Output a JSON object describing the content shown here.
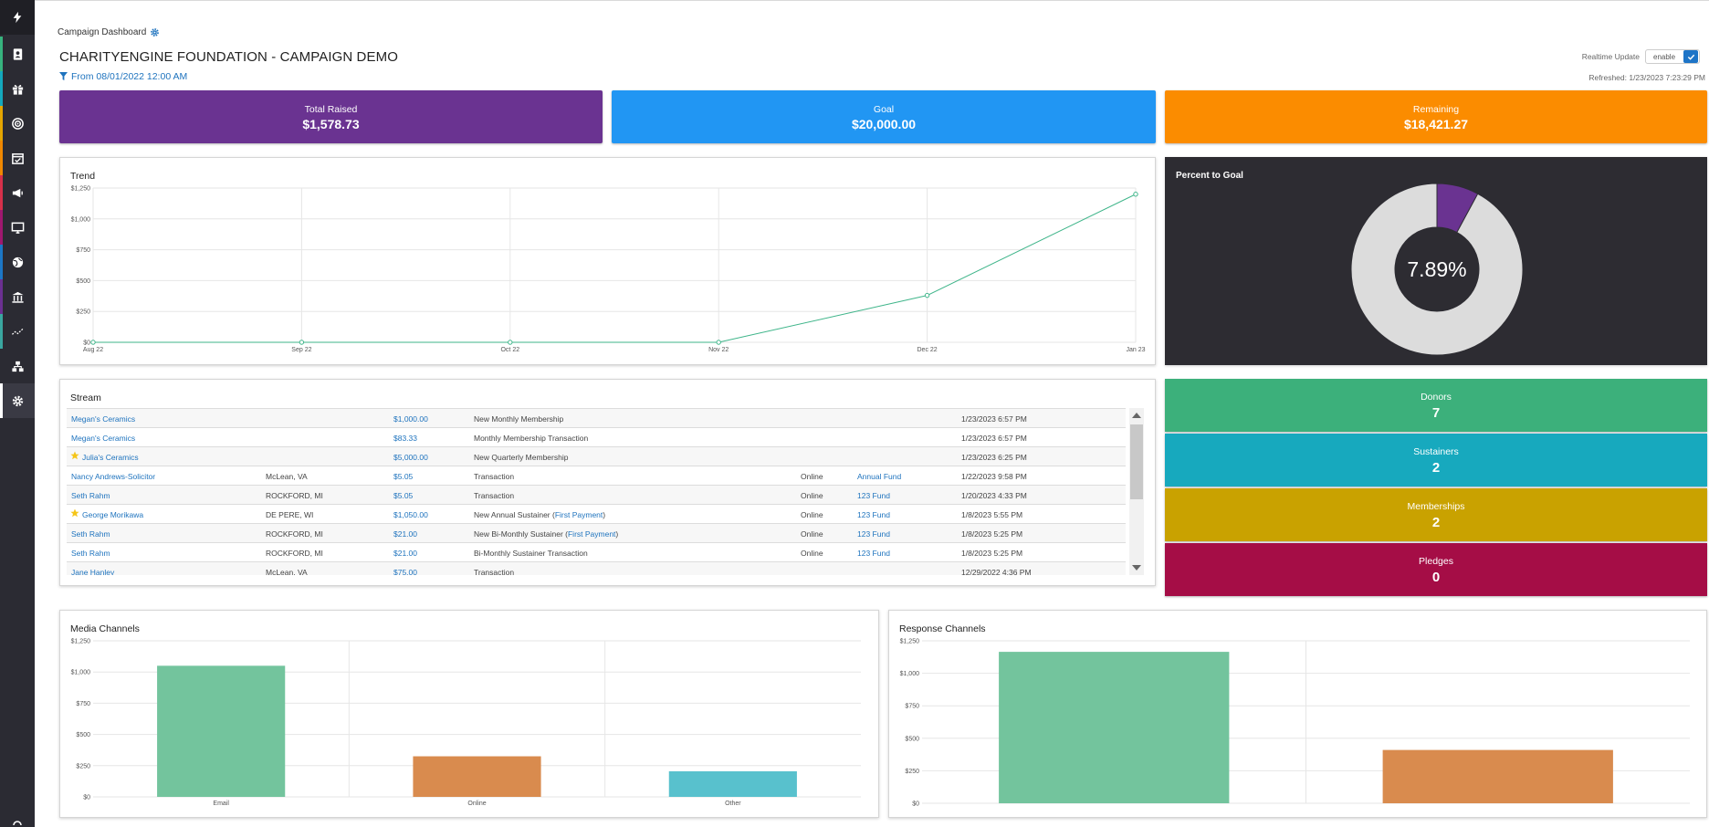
{
  "sidebar": {
    "items": [
      {
        "icon": "contact-book-icon",
        "color": "#37b37e"
      },
      {
        "icon": "gift-icon",
        "color": "#14a8bd"
      },
      {
        "icon": "target-icon",
        "color": "#e3a400"
      },
      {
        "icon": "calendar-icon",
        "color": "#ef8700"
      },
      {
        "icon": "megaphone-icon",
        "color": "#d6304a"
      },
      {
        "icon": "monitor-icon",
        "color": "#a0186f"
      },
      {
        "icon": "globe-icon",
        "color": "#1c77c6"
      },
      {
        "icon": "bank-icon",
        "color": "#6b3091"
      },
      {
        "icon": "analytics-icon",
        "color": "#3aa6a0"
      },
      {
        "icon": "org-chart-icon",
        "color": "#2b2b33"
      },
      {
        "icon": "gear-icon",
        "color": "#ffffff"
      }
    ]
  },
  "header": {
    "breadcrumb": "Campaign Dashboard",
    "title": "CHARITYENGINE FOUNDATION - CAMPAIGN DEMO",
    "filter": "From 08/01/2022 12:00 AM",
    "realtime_label": "Realtime Update",
    "toggle_label": "enable",
    "refreshed": "Refreshed: 1/23/2023 7:23:29 PM"
  },
  "kpis": [
    {
      "label": "Total Raised",
      "value": "$1,578.73",
      "color": "#6a3391"
    },
    {
      "label": "Goal",
      "value": "$20,000.00",
      "color": "#2196f3"
    },
    {
      "label": "Remaining",
      "value": "$18,421.27",
      "color": "#fb8c00"
    }
  ],
  "trend": {
    "title": "Trend",
    "chart_data": {
      "type": "line",
      "categories": [
        "Aug 22",
        "Sep 22",
        "Oct 22",
        "Nov 22",
        "Dec 22",
        "Jan 23"
      ],
      "values": [
        0,
        0,
        0,
        0,
        380,
        1200
      ],
      "yticks": [
        "$0",
        "$250",
        "$500",
        "$750",
        "$1,000",
        "$1,250"
      ],
      "ylim": [
        0,
        1250
      ],
      "color": "#3fb58a"
    }
  },
  "percent": {
    "title": "Percent to Goal",
    "value": "7.89%",
    "chart_data": {
      "type": "pie",
      "values": [
        7.89,
        92.11
      ],
      "colors": [
        "#6a3391",
        "#dcdcdc"
      ]
    }
  },
  "stream": {
    "title": "Stream",
    "rows": [
      {
        "star": false,
        "name": "Megan's Ceramics",
        "location": "",
        "amount": "$1,000.00",
        "type": "New Monthly Membership",
        "type_link": "",
        "channel": "",
        "fund": "",
        "date": "1/23/2023 6:57 PM"
      },
      {
        "star": false,
        "name": "Megan's Ceramics",
        "location": "",
        "amount": "$83.33",
        "type": "Monthly Membership Transaction",
        "type_link": "",
        "channel": "",
        "fund": "",
        "date": "1/23/2023 6:57 PM"
      },
      {
        "star": true,
        "name": "Julia's Ceramics",
        "location": "",
        "amount": "$5,000.00",
        "type": "New Quarterly Membership",
        "type_link": "",
        "channel": "",
        "fund": "",
        "date": "1/23/2023 6:25 PM"
      },
      {
        "star": false,
        "name": "Nancy Andrews-Solicitor",
        "location": "McLean, VA",
        "amount": "$5.05",
        "type": "Transaction",
        "type_link": "",
        "channel": "Online",
        "fund": "Annual Fund",
        "date": "1/22/2023 9:58 PM"
      },
      {
        "star": false,
        "name": "Seth Rahm",
        "location": "ROCKFORD, MI",
        "amount": "$5.05",
        "type": "Transaction",
        "type_link": "",
        "channel": "Online",
        "fund": "123 Fund",
        "date": "1/20/2023 4:33 PM"
      },
      {
        "star": true,
        "name": "George Morikawa",
        "location": "DE PERE, WI",
        "amount": "$1,050.00",
        "type": "New Annual Sustainer (",
        "type_link": "First Payment",
        "channel": "Online",
        "fund": "123 Fund",
        "date": "1/8/2023 5:55 PM"
      },
      {
        "star": false,
        "name": "Seth Rahm",
        "location": "ROCKFORD, MI",
        "amount": "$21.00",
        "type": "New Bi-Monthly Sustainer (",
        "type_link": "First Payment",
        "channel": "Online",
        "fund": "123 Fund",
        "date": "1/8/2023 5:25 PM"
      },
      {
        "star": false,
        "name": "Seth Rahm",
        "location": "ROCKFORD, MI",
        "amount": "$21.00",
        "type": "Bi-Monthly Sustainer Transaction",
        "type_link": "",
        "channel": "Online",
        "fund": "123 Fund",
        "date": "1/8/2023 5:25 PM"
      },
      {
        "star": false,
        "name": "Jane Hanley",
        "location": "McLean, VA",
        "amount": "$75.00",
        "type": "Transaction",
        "type_link": "",
        "channel": "",
        "fund": "",
        "date": "12/29/2022 4:36 PM"
      }
    ]
  },
  "stats": [
    {
      "label": "Donors",
      "value": "7",
      "color": "#3cb07b"
    },
    {
      "label": "Sustainers",
      "value": "2",
      "color": "#17a9be"
    },
    {
      "label": "Memberships",
      "value": "2",
      "color": "#c9a200"
    },
    {
      "label": "Pledges",
      "value": "0",
      "color": "#a50d46"
    }
  ],
  "media": {
    "title": "Media Channels",
    "chart_data": {
      "type": "bar",
      "categories": [
        "Email",
        "Online",
        "Other"
      ],
      "values": [
        1050,
        325,
        205
      ],
      "colors": [
        "#73c49d",
        "#d98b4e",
        "#58c1cd"
      ],
      "yticks": [
        "$0",
        "$250",
        "$500",
        "$750",
        "$1,000",
        "$1,250"
      ],
      "ylim": [
        0,
        1250
      ]
    }
  },
  "response": {
    "title": "Response Channels",
    "chart_data": {
      "type": "bar",
      "categories": [
        "",
        ""
      ],
      "values": [
        1165,
        410
      ],
      "colors": [
        "#73c49d",
        "#d98b4e"
      ],
      "yticks": [
        "$0",
        "$250",
        "$500",
        "$750",
        "$1,000",
        "$1,250"
      ],
      "ylim": [
        0,
        1250
      ]
    }
  }
}
